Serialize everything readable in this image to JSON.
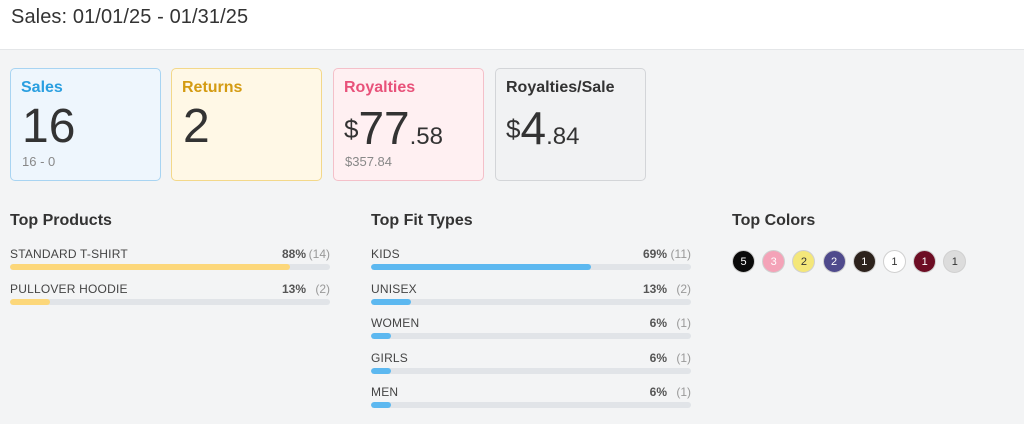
{
  "header": {
    "title": "Sales: 01/01/25 - 01/31/25"
  },
  "cards": {
    "sales": {
      "label": "Sales",
      "value": "16",
      "sub": "16 - 0"
    },
    "returns": {
      "label": "Returns",
      "value": "2"
    },
    "royalties": {
      "label": "Royalties",
      "currency": "$",
      "int": "77",
      "dec": ".58",
      "sub": "$357.84"
    },
    "royalties_per_sale": {
      "label": "Royalties/Sale",
      "currency": "$",
      "int": "4",
      "dec": ".84"
    }
  },
  "top_products": {
    "title": "Top Products",
    "items": [
      {
        "name": "STANDARD T-SHIRT",
        "pct": "88%",
        "count": "(14)",
        "fraction": 0.875
      },
      {
        "name": "PULLOVER HOODIE",
        "pct": "13%",
        "count": "(2)",
        "fraction": 0.125
      }
    ]
  },
  "top_fit_types": {
    "title": "Top Fit Types",
    "items": [
      {
        "name": "KIDS",
        "pct": "69%",
        "count": "(11)",
        "fraction": 0.6875
      },
      {
        "name": "UNISEX",
        "pct": "13%",
        "count": "(2)",
        "fraction": 0.125
      },
      {
        "name": "WOMEN",
        "pct": "6%",
        "count": "(1)",
        "fraction": 0.0625
      },
      {
        "name": "GIRLS",
        "pct": "6%",
        "count": "(1)",
        "fraction": 0.0625
      },
      {
        "name": "MEN",
        "pct": "6%",
        "count": "(1)",
        "fraction": 0.0625
      }
    ]
  },
  "top_colors": {
    "title": "Top Colors",
    "items": [
      {
        "count": "5",
        "color": "#0a0a0a",
        "text_color": "#ffffff"
      },
      {
        "count": "3",
        "color": "#f4a3b8",
        "text_color": "#ffffff"
      },
      {
        "count": "2",
        "color": "#f4e77a",
        "text_color": "#333333"
      },
      {
        "count": "2",
        "color": "#4f4a8c",
        "text_color": "#ffffff"
      },
      {
        "count": "1",
        "color": "#2c221c",
        "text_color": "#ffffff"
      },
      {
        "count": "1",
        "color": "#ffffff",
        "text_color": "#333333"
      },
      {
        "count": "1",
        "color": "#6d0d24",
        "text_color": "#ffffff"
      },
      {
        "count": "1",
        "color": "#dcdcdc",
        "text_color": "#333333"
      }
    ]
  }
}
